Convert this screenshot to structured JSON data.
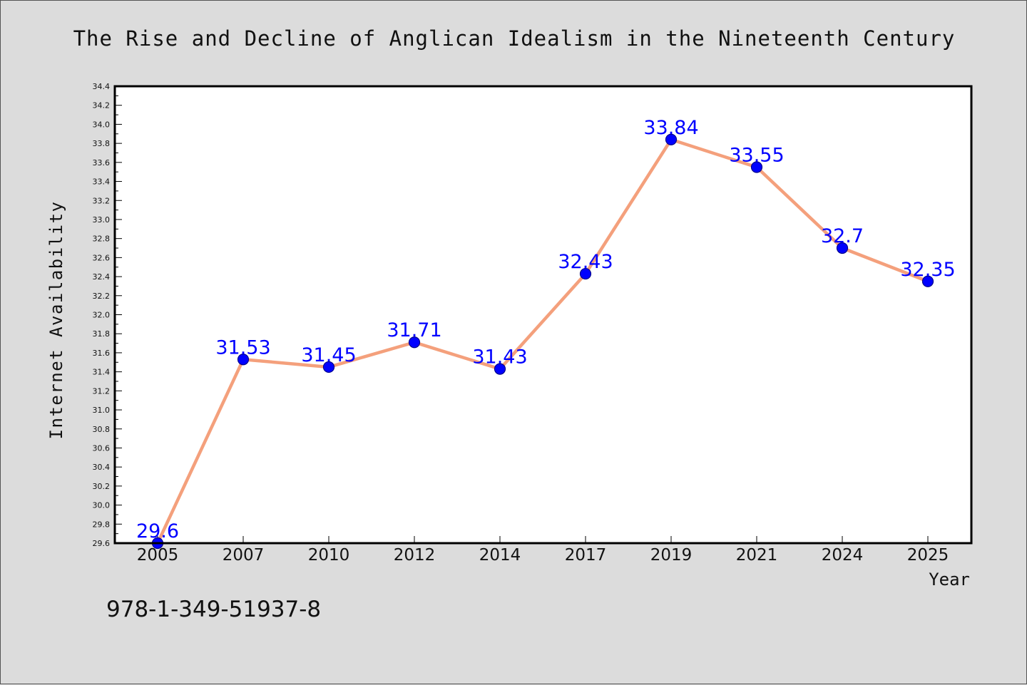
{
  "chart_data": {
    "type": "line",
    "title": "The Rise and Decline of Anglican Idealism in the Nineteenth Century",
    "xlabel": "Year",
    "ylabel": "Internet Availability",
    "categories": [
      "2005",
      "2007",
      "2010",
      "2012",
      "2014",
      "2017",
      "2019",
      "2021",
      "2024",
      "2025"
    ],
    "series": [
      {
        "values": [
          29.6,
          31.53,
          31.45,
          31.71,
          31.43,
          32.43,
          33.84,
          33.55,
          32.7,
          32.35
        ],
        "labels": [
          "29.6",
          "31.53",
          "31.45",
          "31.71",
          "31.43",
          "32.43",
          "33.84",
          "33.55",
          "32.7",
          "32.35"
        ]
      }
    ],
    "ylim": [
      29.6,
      34.4
    ],
    "ytick_step": 0.2,
    "ytick_minor_step": 0.1,
    "grid": false,
    "legend": "none",
    "colors": {
      "line": "#f4a07c",
      "marker": "#0000ff",
      "marker_edge": "#00008b",
      "data_label": "#0000ff"
    }
  },
  "footnote": "978-1-349-51937-8"
}
